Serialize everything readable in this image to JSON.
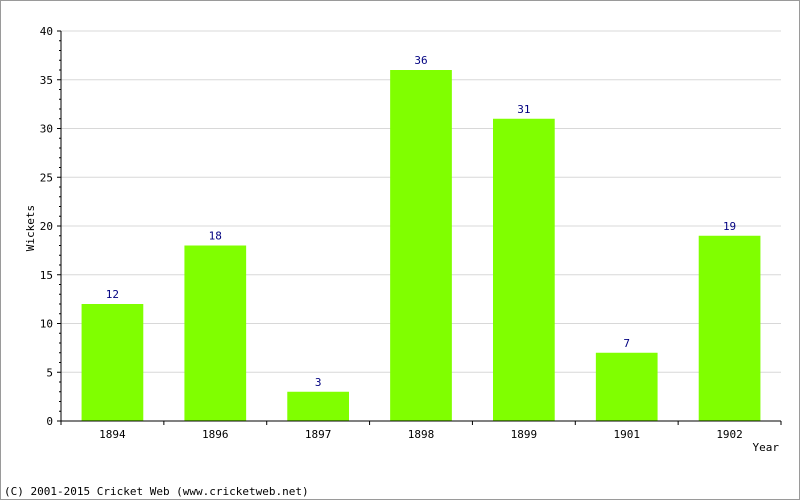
{
  "chart_data": {
    "type": "bar",
    "categories": [
      "1894",
      "1896",
      "1897",
      "1898",
      "1899",
      "1901",
      "1902"
    ],
    "values": [
      12,
      18,
      3,
      36,
      31,
      7,
      19
    ],
    "title": "",
    "xlabel": "Year",
    "ylabel": "Wickets",
    "ylim": [
      0,
      40
    ],
    "yticks": [
      0,
      5,
      10,
      15,
      20,
      25,
      30,
      35,
      40
    ],
    "grid": true,
    "legend": "none",
    "data_labels": true
  },
  "colors": {
    "bar": "#80ff00",
    "value_label": "#000080",
    "axis": "#000000",
    "grid": "#d8d8d8",
    "text": "#000000"
  },
  "footer": {
    "copyright": "(C) 2001-2015 Cricket Web (www.cricketweb.net)"
  }
}
